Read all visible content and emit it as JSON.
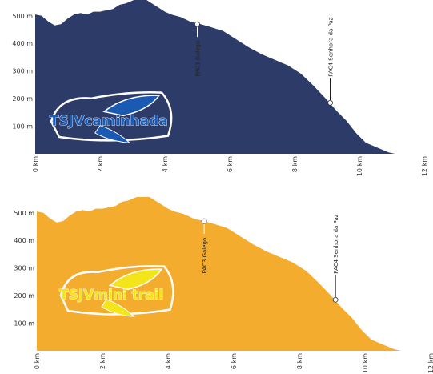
{
  "chart_data": [
    {
      "type": "area",
      "name": "TSJV caminhada",
      "logo_text": "TSJVcaminhada",
      "fill_color": "#2d3b68",
      "logo_accent_color": "#1a5ab3",
      "xlabel": "",
      "ylabel": "",
      "x_unit": "km",
      "y_unit": "m",
      "xlim": [
        0,
        12
      ],
      "ylim": [
        0,
        540
      ],
      "x_ticks": [
        0,
        2,
        4,
        6,
        8,
        10,
        12
      ],
      "x_tick_labels": [
        "0 km",
        "2 km",
        "4 km",
        "6 km",
        "8 km",
        "10 km",
        "12 km"
      ],
      "y_ticks": [
        100,
        200,
        300,
        400,
        500
      ],
      "y_tick_labels": [
        "100 m",
        "200 m",
        "300 m",
        "400 m",
        "500 m"
      ],
      "profile": [
        [
          0,
          505
        ],
        [
          0.2,
          500
        ],
        [
          0.4,
          480
        ],
        [
          0.6,
          465
        ],
        [
          0.8,
          470
        ],
        [
          1.0,
          490
        ],
        [
          1.2,
          505
        ],
        [
          1.4,
          510
        ],
        [
          1.6,
          505
        ],
        [
          1.8,
          515
        ],
        [
          2.0,
          515
        ],
        [
          2.2,
          520
        ],
        [
          2.4,
          525
        ],
        [
          2.6,
          540
        ],
        [
          2.8,
          545
        ],
        [
          3.0,
          555
        ],
        [
          3.2,
          565
        ],
        [
          3.3,
          578
        ],
        [
          3.4,
          560
        ],
        [
          3.6,
          545
        ],
        [
          3.8,
          530
        ],
        [
          4.0,
          515
        ],
        [
          4.2,
          505
        ],
        [
          4.5,
          495
        ],
        [
          4.8,
          478
        ],
        [
          5.1,
          470
        ],
        [
          5.4,
          460
        ],
        [
          5.8,
          445
        ],
        [
          6.2,
          415
        ],
        [
          6.6,
          385
        ],
        [
          7.0,
          360
        ],
        [
          7.4,
          340
        ],
        [
          7.8,
          320
        ],
        [
          8.2,
          290
        ],
        [
          8.6,
          245
        ],
        [
          9.0,
          195
        ],
        [
          9.3,
          155
        ],
        [
          9.6,
          120
        ],
        [
          9.9,
          75
        ],
        [
          10.2,
          40
        ],
        [
          10.6,
          20
        ],
        [
          10.9,
          5
        ],
        [
          11.1,
          0
        ]
      ],
      "checkpoints": [
        {
          "x": 5.0,
          "y": 470,
          "label": "PAC3 Galego"
        },
        {
          "x": 9.1,
          "y": 185,
          "label": "PAC4 Senhora da Paz"
        }
      ]
    },
    {
      "type": "area",
      "name": "TSJV mini trail",
      "logo_text": "TSJVmini trail",
      "fill_color": "#f4ac2e",
      "logo_accent_color": "#f3e51a",
      "xlabel": "",
      "ylabel": "",
      "x_unit": "km",
      "y_unit": "m",
      "xlim": [
        0,
        12
      ],
      "ylim": [
        0,
        540
      ],
      "x_ticks": [
        0,
        2,
        4,
        6,
        8,
        10,
        12
      ],
      "x_tick_labels": [
        "0 km",
        "2 km",
        "4 km",
        "6 km",
        "8 km",
        "10 km",
        "12 km"
      ],
      "y_ticks": [
        100,
        200,
        300,
        400,
        500
      ],
      "y_tick_labels": [
        "100 m",
        "200 m",
        "300 m",
        "400 m",
        "500 m"
      ],
      "profile": [
        [
          0,
          505
        ],
        [
          0.2,
          500
        ],
        [
          0.4,
          480
        ],
        [
          0.6,
          465
        ],
        [
          0.8,
          470
        ],
        [
          1.0,
          490
        ],
        [
          1.2,
          505
        ],
        [
          1.4,
          510
        ],
        [
          1.6,
          505
        ],
        [
          1.8,
          515
        ],
        [
          2.0,
          515
        ],
        [
          2.2,
          520
        ],
        [
          2.4,
          525
        ],
        [
          2.6,
          540
        ],
        [
          2.8,
          545
        ],
        [
          3.0,
          555
        ],
        [
          3.2,
          565
        ],
        [
          3.3,
          578
        ],
        [
          3.4,
          560
        ],
        [
          3.6,
          545
        ],
        [
          3.8,
          530
        ],
        [
          4.0,
          515
        ],
        [
          4.2,
          505
        ],
        [
          4.5,
          495
        ],
        [
          4.8,
          478
        ],
        [
          5.1,
          470
        ],
        [
          5.4,
          460
        ],
        [
          5.8,
          445
        ],
        [
          6.2,
          415
        ],
        [
          6.6,
          385
        ],
        [
          7.0,
          360
        ],
        [
          7.4,
          340
        ],
        [
          7.8,
          320
        ],
        [
          8.2,
          290
        ],
        [
          8.6,
          245
        ],
        [
          9.0,
          195
        ],
        [
          9.3,
          155
        ],
        [
          9.6,
          120
        ],
        [
          9.9,
          75
        ],
        [
          10.2,
          40
        ],
        [
          10.6,
          20
        ],
        [
          10.9,
          5
        ],
        [
          11.1,
          0
        ]
      ],
      "checkpoints": [
        {
          "x": 5.1,
          "y": 470,
          "label": "PAC3 Galego"
        },
        {
          "x": 9.1,
          "y": 185,
          "label": "PAC4 Senhora da Paz"
        }
      ]
    }
  ]
}
